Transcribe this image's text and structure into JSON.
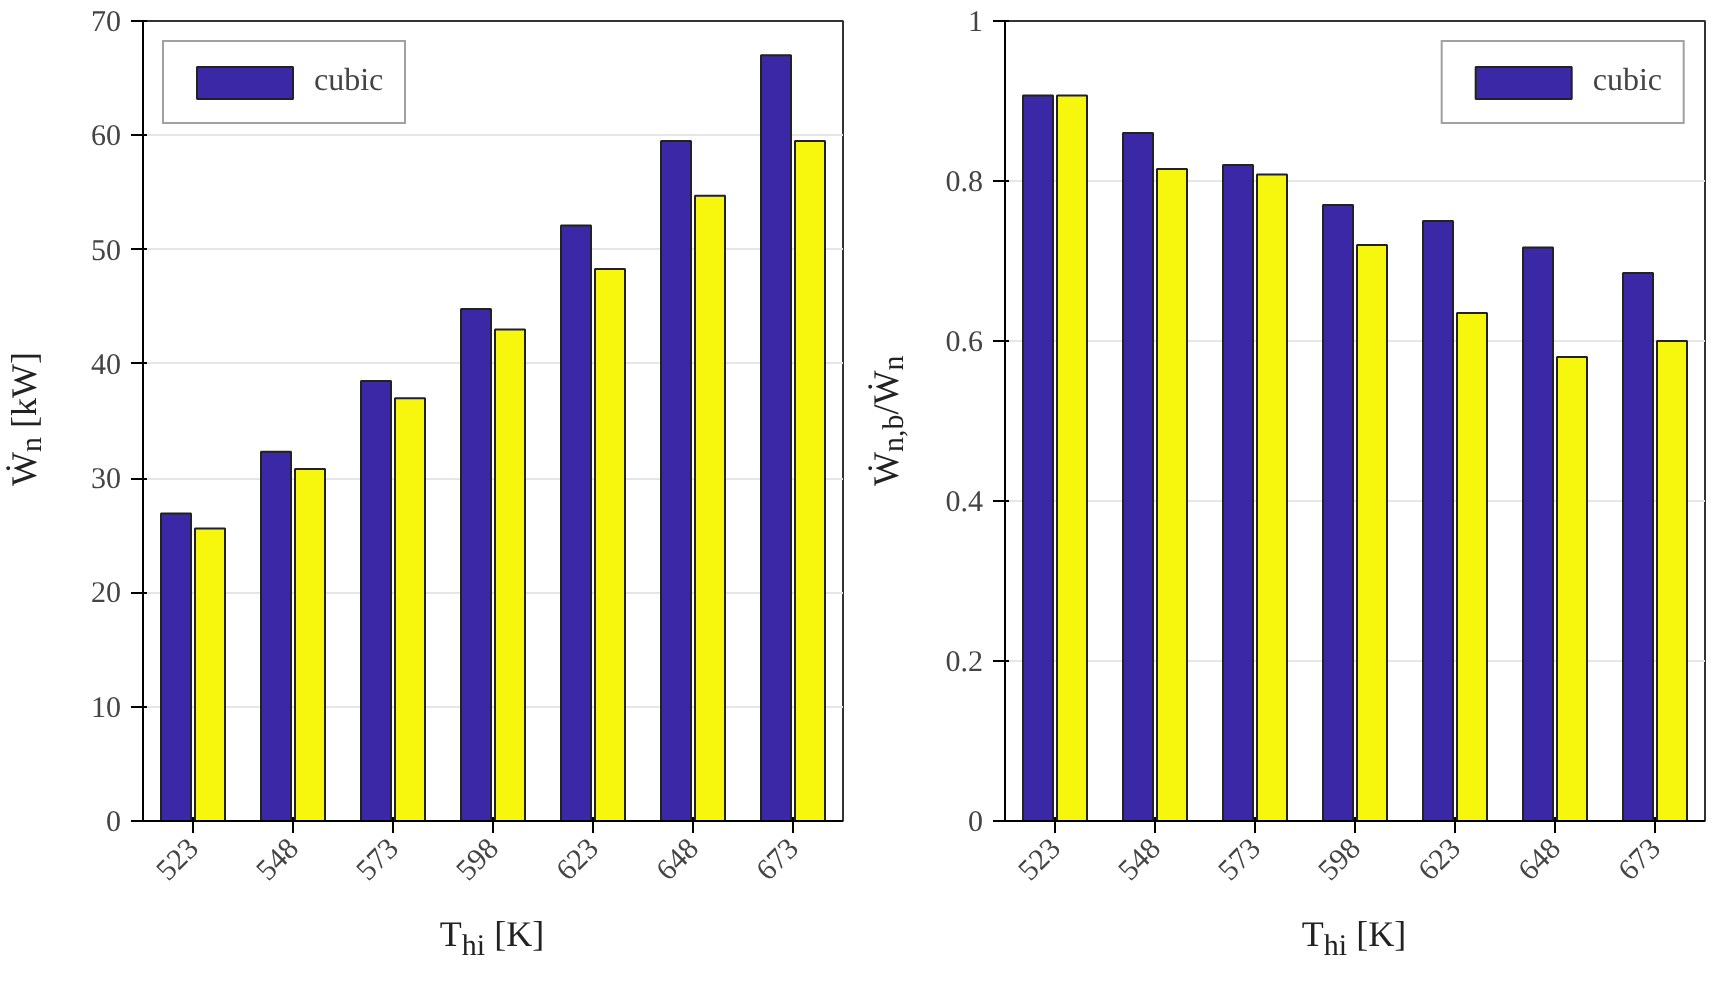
{
  "chart_data": [
    {
      "type": "bar",
      "categories": [
        "523",
        "548",
        "573",
        "598",
        "623",
        "648",
        "673"
      ],
      "xlabel": "T$_{hi}$ [K]",
      "ylabel": "Ẇ$_{n}$ [kW]",
      "ylim": [
        0,
        70
      ],
      "yticks": [
        0,
        10,
        20,
        30,
        40,
        50,
        60,
        70
      ],
      "grid": "y",
      "legend": "top left",
      "series": [
        {
          "name": "cubic",
          "color": "#3a28a6",
          "values": [
            26.9,
            32.3,
            38.5,
            44.8,
            52.1,
            59.5,
            67.0
          ]
        },
        {
          "color": "#f7f70e",
          "values": [
            25.6,
            30.8,
            37.0,
            43.0,
            48.3,
            54.7,
            59.5
          ]
        }
      ]
    },
    {
      "type": "bar",
      "categories": [
        "523",
        "548",
        "573",
        "598",
        "623",
        "648",
        "673"
      ],
      "xlabel": "T$_{hi}$ [K]",
      "ylabel": "Ẇ$_{n,b}$/Ẇ$_{n}$",
      "ylim": [
        0,
        1
      ],
      "yticks": [
        0,
        {
          "value": 0.2,
          "label": "0.2"
        },
        {
          "value": 0.4,
          "label": "0.4"
        },
        {
          "value": 0.6,
          "label": "0.6"
        },
        {
          "value": 0.8,
          "label": "0.8"
        },
        1
      ],
      "grid": "y",
      "legend": "top right",
      "series": [
        {
          "name": "cubic",
          "color": "#3a28a6",
          "values": [
            0.907,
            0.86,
            0.82,
            0.77,
            0.75,
            0.717,
            0.685
          ]
        },
        {
          "color": "#f7f70e",
          "values": [
            0.907,
            0.815,
            0.808,
            0.72,
            0.635,
            0.58,
            0.6
          ]
        }
      ]
    }
  ]
}
